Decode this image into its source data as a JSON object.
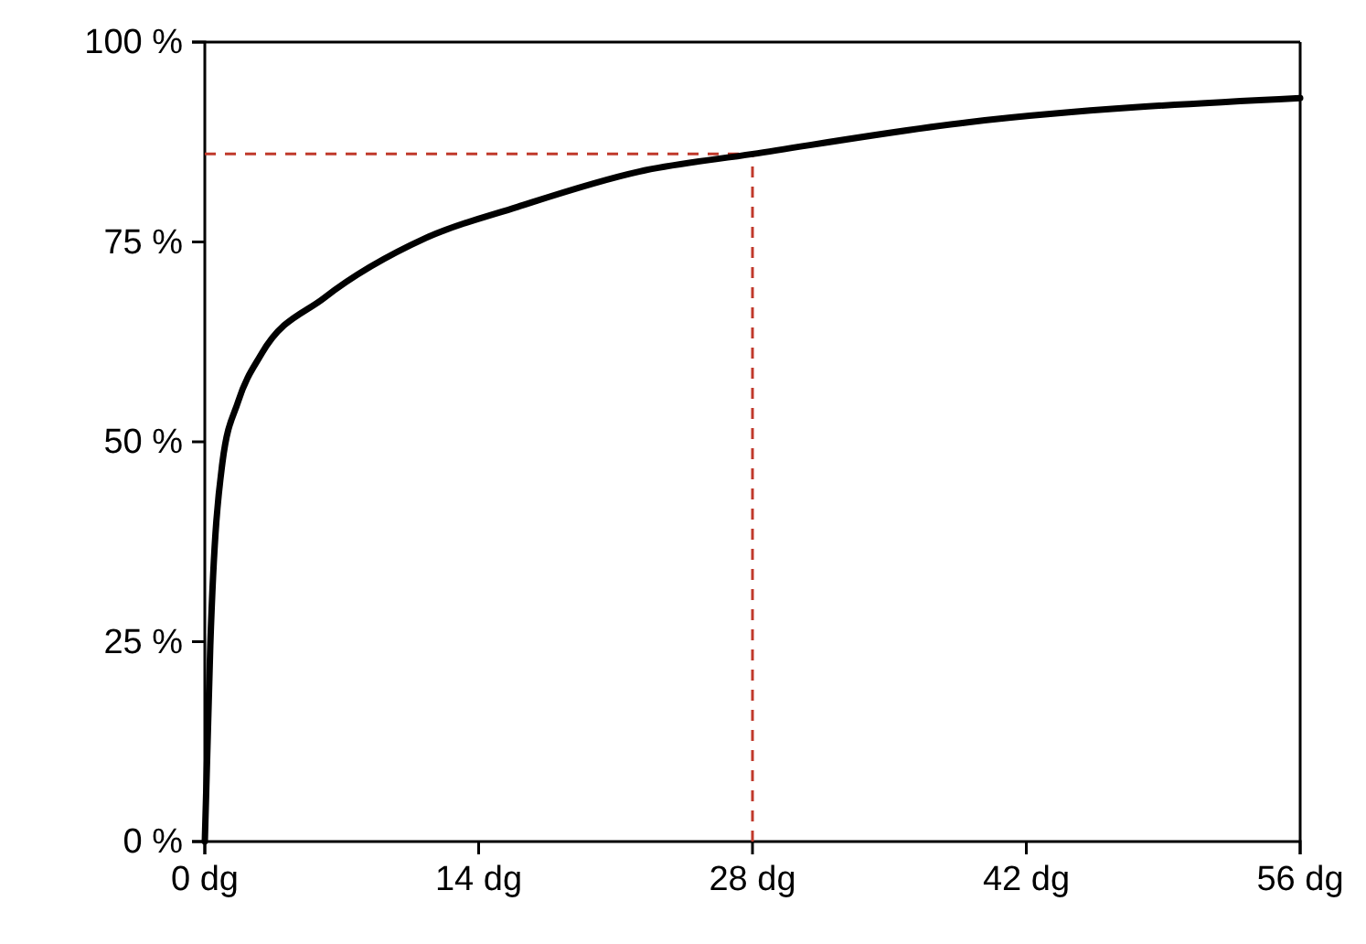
{
  "chart_data": {
    "type": "line",
    "x": [
      0,
      0.28,
      0.9,
      1.7,
      2.9,
      6.1,
      11.3,
      16,
      22.2,
      28,
      39.1,
      56
    ],
    "series": [
      {
        "color": "#000000",
        "values": [
          0,
          24.5,
          47.4,
          55,
          61,
          68,
          75.5,
          79.4,
          83.8,
          86,
          90,
          93
        ]
      }
    ],
    "xlim": [
      0,
      56
    ],
    "xticks": [
      {
        "value": 0,
        "label": "0 dg"
      },
      {
        "value": 14,
        "label": "14 dg"
      },
      {
        "value": 28,
        "label": "28 dg"
      },
      {
        "value": 42,
        "label": "42 dg"
      },
      {
        "value": 56,
        "label": "56 dg"
      }
    ],
    "ylim": [
      0,
      100
    ],
    "yticks": [
      {
        "value": 0,
        "label": "0 %"
      },
      {
        "value": 25,
        "label": "25 %"
      },
      {
        "value": 50,
        "label": "50 %"
      },
      {
        "value": 75,
        "label": "75 %"
      },
      {
        "value": 100,
        "label": "100 %"
      }
    ],
    "ref_lines": [
      {
        "axis": "y",
        "value": 86,
        "color": "#c0392b",
        "line_style": "dashed"
      },
      {
        "axis": "x",
        "value": 28,
        "color": "#c0392b",
        "line_style": "dashed"
      }
    ],
    "grid": false,
    "marker": "none",
    "line_style": "solid"
  }
}
